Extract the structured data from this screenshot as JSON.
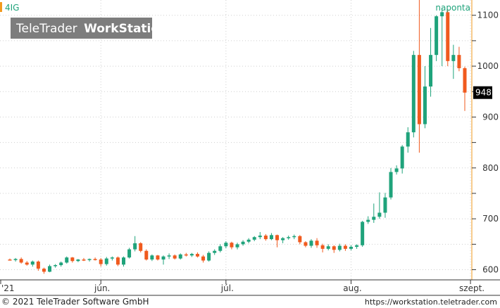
{
  "header": {
    "symbol": "4IG",
    "period": "naponta",
    "watermark_light": "TeleTrader",
    "watermark_bold": "WorkStation"
  },
  "footer": {
    "copyright": "© 2021  TeleTrader Software GmbH",
    "url": "https://workstation.teletrader.com"
  },
  "colors": {
    "up": "#1fa37b",
    "down": "#f05a1e",
    "accent": "#f29a1e",
    "grid": "#cfcfcf"
  },
  "chart_data": {
    "type": "candlestick",
    "y_ticks": [
      "600",
      "700",
      "800",
      "900",
      "1000",
      "1100"
    ],
    "ylim": [
      580,
      1130
    ],
    "x_ticks": [
      {
        "label": "'21",
        "index": 0
      },
      {
        "label": "jún.",
        "index": 16
      },
      {
        "label": "júl.",
        "index": 38
      },
      {
        "label": "aug.",
        "index": 60
      },
      {
        "label": "szept.",
        "index": 81
      }
    ],
    "last_price": "948",
    "candles": [
      [
        620,
        622,
        618,
        619
      ],
      [
        619,
        623,
        616,
        621
      ],
      [
        621,
        624,
        612,
        614
      ],
      [
        614,
        617,
        608,
        610
      ],
      [
        610,
        618,
        606,
        616
      ],
      [
        616,
        618,
        598,
        602
      ],
      [
        602,
        604,
        592,
        596
      ],
      [
        596,
        610,
        595,
        607
      ],
      [
        607,
        611,
        604,
        609
      ],
      [
        609,
        616,
        606,
        614
      ],
      [
        614,
        626,
        612,
        624
      ],
      [
        624,
        625,
        614,
        617
      ],
      [
        617,
        621,
        615,
        620
      ],
      [
        620,
        623,
        617,
        619
      ],
      [
        619,
        622,
        616,
        621
      ],
      [
        621,
        624,
        618,
        620
      ],
      [
        620,
        623,
        606,
        611
      ],
      [
        611,
        625,
        608,
        622
      ],
      [
        622,
        626,
        618,
        624
      ],
      [
        624,
        626,
        607,
        610
      ],
      [
        610,
        626,
        606,
        624
      ],
      [
        624,
        643,
        622,
        640
      ],
      [
        640,
        666,
        636,
        652
      ],
      [
        652,
        654,
        634,
        637
      ],
      [
        637,
        640,
        618,
        620
      ],
      [
        620,
        630,
        617,
        628
      ],
      [
        628,
        629,
        618,
        620
      ],
      [
        620,
        628,
        610,
        626
      ],
      [
        626,
        632,
        621,
        628
      ],
      [
        628,
        630,
        620,
        622
      ],
      [
        622,
        632,
        620,
        630
      ],
      [
        630,
        633,
        626,
        628
      ],
      [
        628,
        633,
        625,
        631
      ],
      [
        631,
        634,
        624,
        626
      ],
      [
        626,
        629,
        614,
        618
      ],
      [
        618,
        636,
        616,
        633
      ],
      [
        633,
        640,
        629,
        637
      ],
      [
        637,
        650,
        634,
        646
      ],
      [
        646,
        656,
        642,
        653
      ],
      [
        653,
        655,
        640,
        644
      ],
      [
        644,
        653,
        640,
        650
      ],
      [
        650,
        658,
        647,
        655
      ],
      [
        655,
        662,
        652,
        659
      ],
      [
        659,
        666,
        656,
        664
      ],
      [
        664,
        674,
        660,
        667
      ],
      [
        667,
        670,
        657,
        660
      ],
      [
        660,
        672,
        658,
        668
      ],
      [
        668,
        669,
        644,
        658
      ],
      [
        658,
        664,
        652,
        662
      ],
      [
        662,
        667,
        659,
        664
      ],
      [
        664,
        669,
        660,
        666
      ],
      [
        666,
        668,
        650,
        654
      ],
      [
        654,
        656,
        644,
        647
      ],
      [
        647,
        660,
        643,
        657
      ],
      [
        657,
        662,
        643,
        648
      ],
      [
        648,
        651,
        634,
        641
      ],
      [
        641,
        650,
        638,
        646
      ],
      [
        646,
        648,
        633,
        639
      ],
      [
        639,
        651,
        636,
        647
      ],
      [
        647,
        650,
        637,
        641
      ],
      [
        641,
        648,
        638,
        645
      ],
      [
        645,
        650,
        641,
        648
      ],
      [
        648,
        696,
        645,
        694
      ],
      [
        694,
        705,
        690,
        698
      ],
      [
        698,
        730,
        692,
        704
      ],
      [
        704,
        752,
        700,
        712
      ],
      [
        712,
        751,
        702,
        742
      ],
      [
        742,
        800,
        738,
        792
      ],
      [
        792,
        805,
        787,
        799
      ],
      [
        799,
        845,
        789,
        842
      ],
      [
        842,
        880,
        830,
        870
      ],
      [
        870,
        1030,
        860,
        1022
      ],
      [
        1022,
        1135,
        830,
        886
      ],
      [
        886,
        1000,
        878,
        960
      ],
      [
        960,
        1075,
        940,
        1022
      ],
      [
        1022,
        1100,
        1010,
        1098
      ],
      [
        1098,
        1115,
        1000,
        1106
      ],
      [
        1106,
        1110,
        1000,
        1010
      ],
      [
        1010,
        1042,
        975,
        1022
      ],
      [
        1022,
        1038,
        990,
        996
      ],
      [
        996,
        999,
        912,
        948
      ]
    ]
  }
}
